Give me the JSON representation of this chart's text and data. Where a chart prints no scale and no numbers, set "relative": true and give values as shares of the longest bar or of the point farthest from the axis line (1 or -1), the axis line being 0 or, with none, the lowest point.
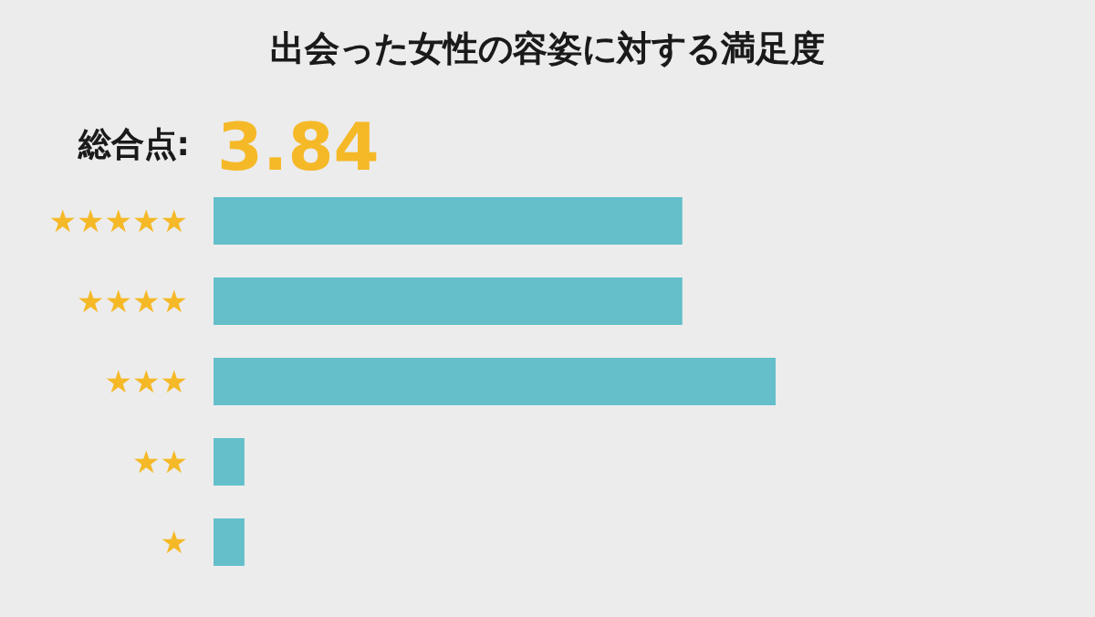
{
  "chart_data": {
    "type": "bar",
    "orientation": "horizontal",
    "relative": true,
    "title": "出会った女性の容姿に対する満足度",
    "annotations": [
      "総合点:",
      "3.84"
    ],
    "categories": [
      "★★★★★",
      "★★★★",
      "★★★",
      "★★",
      "★"
    ],
    "values": [
      0.834,
      0.834,
      1,
      0.055,
      0.055
    ],
    "color": "#64bfca"
  }
}
